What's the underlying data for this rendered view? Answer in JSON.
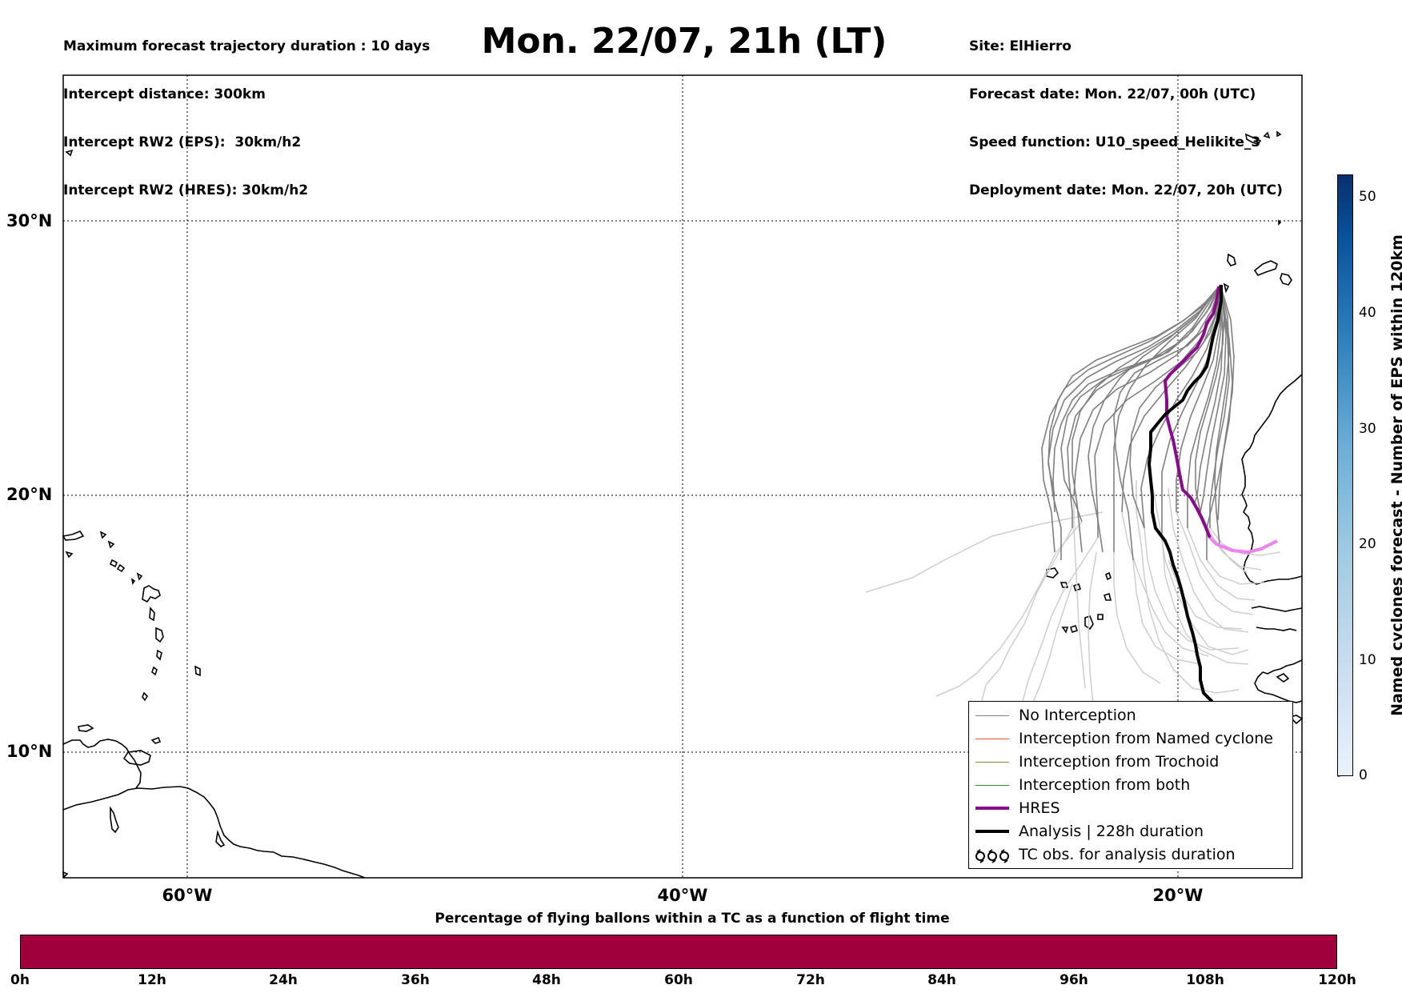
{
  "header": {
    "left": [
      "Maximum forecast trajectory duration : 10 days",
      "Intercept distance: 300km",
      "Intercept RW2 (EPS):  30km/h2",
      "Intercept RW2 (HRES): 30km/h2"
    ],
    "title": "Mon. 22/07, 21h (LT)",
    "right": [
      "Site: ElHierro",
      "Forecast date: Mon. 22/07, 00h (UTC)",
      "Speed function: U10_speed_Helikite_3",
      "Deployment date: Mon. 22/07, 20h (UTC)"
    ]
  },
  "map": {
    "lat_ticks": [
      "30°N",
      "20°N",
      "10°N"
    ],
    "lon_ticks": [
      "60°W",
      "40°W",
      "20°W"
    ],
    "colors": {
      "no_interception": "#808080",
      "no_interception_light": "#cccccc",
      "named_cyclone": "#e8502b",
      "trochoid": "#8a8a2a",
      "both": "#2e8b2e",
      "hres": "#8b0a8b",
      "hres_late": "#ee82ee",
      "analysis": "#000000"
    }
  },
  "legend": {
    "items": [
      {
        "label": "No Interception",
        "color": "#808080"
      },
      {
        "label": "Interception from Named cyclone",
        "color": "#e8502b"
      },
      {
        "label": "Interception from Trochoid",
        "color": "#8a8a2a"
      },
      {
        "label": "Interception from both",
        "color": "#2e8b2e"
      },
      {
        "label": "HRES",
        "color": "#8b0a8b"
      },
      {
        "label": "Analysis | 228h duration",
        "color": "#000000"
      },
      {
        "label": "TC obs. for analysis duration",
        "icon": "cyclone-symbols-icon"
      }
    ]
  },
  "colorbar_right": {
    "label": "Named cyclones forecast - Number of EPS within 120km",
    "ticks": [
      "0",
      "10",
      "20",
      "30",
      "40",
      "50"
    ],
    "range": [
      0,
      52
    ]
  },
  "colorbar_bottom": {
    "label": "Percentage of flying ballons within a TC as a function of flight time",
    "ticks": [
      "0h",
      "12h",
      "24h",
      "36h",
      "48h",
      "60h",
      "72h",
      "84h",
      "96h",
      "108h",
      "120h"
    ],
    "color": "#a0003c"
  }
}
